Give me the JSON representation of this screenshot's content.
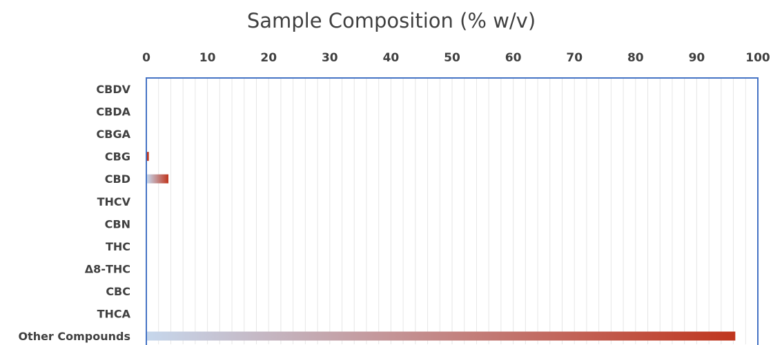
{
  "chart_data": {
    "type": "bar",
    "orientation": "horizontal",
    "title": "Sample Composition (% w/v)",
    "xlabel": "",
    "ylabel": "",
    "xlim": [
      0,
      100
    ],
    "x_ticks": [
      "0",
      "10",
      "20",
      "30",
      "40",
      "50",
      "60",
      "70",
      "80",
      "90",
      "100"
    ],
    "x_axis_position": "top",
    "grid": "vertical minor gridlines",
    "legend": "none",
    "categories": [
      "CBDV",
      "CBDA",
      "CBGA",
      "CBG",
      "CBD",
      "THCV",
      "CBN",
      "THC",
      "Δ8-THC",
      "CBC",
      "THCA",
      "Other Compounds"
    ],
    "values": [
      0,
      0,
      0,
      0.3,
      3.5,
      0,
      0,
      0,
      0,
      0,
      0,
      96.2
    ],
    "colors": {
      "gradient_start": "#c6d7ec",
      "gradient_end": "#c0361e",
      "frame": "#4472c4",
      "grid": "#e6e6e6",
      "text": "#404040"
    }
  }
}
